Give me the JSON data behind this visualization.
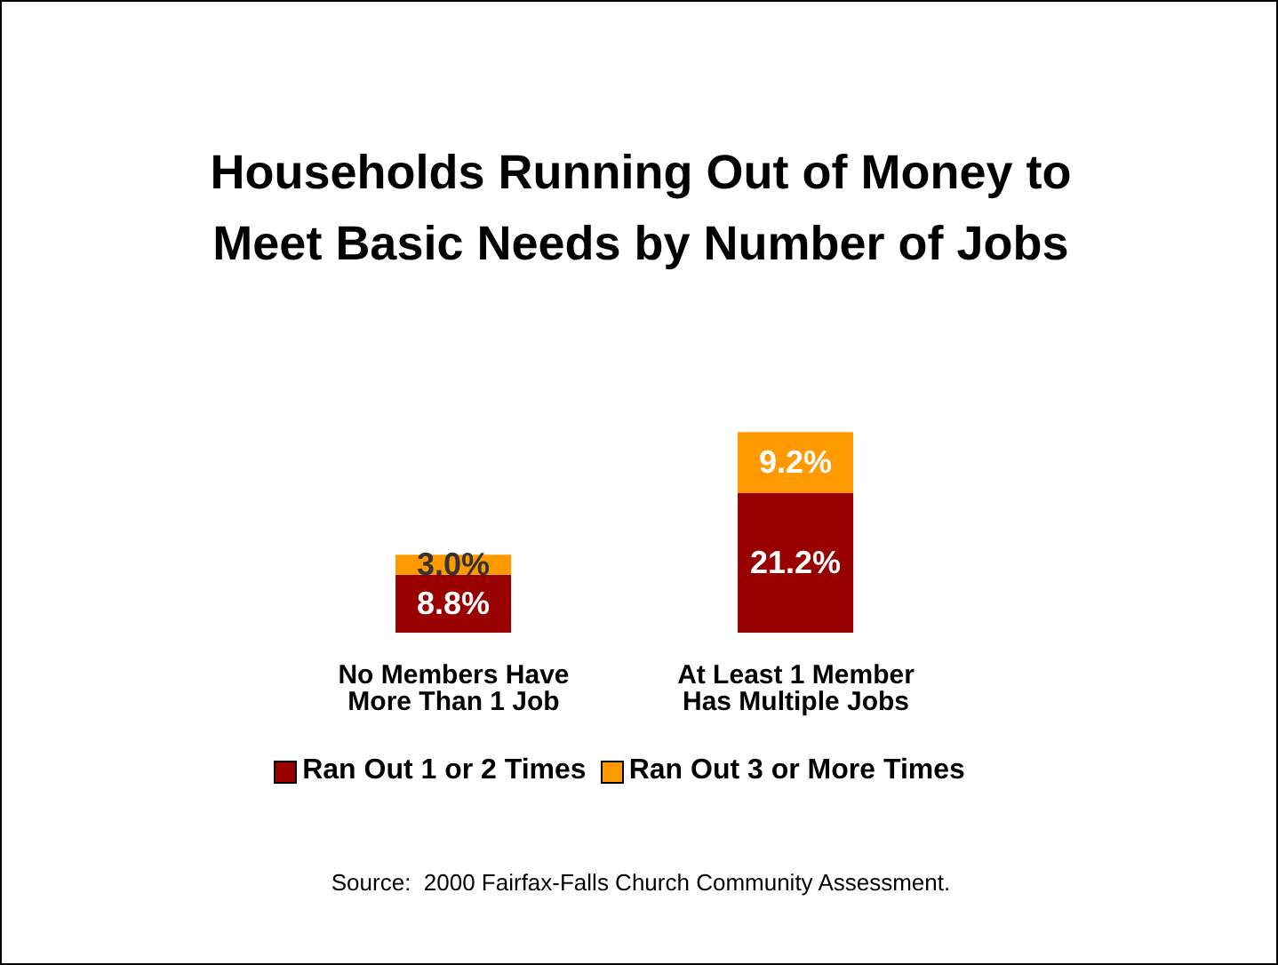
{
  "chart_data": {
    "type": "bar",
    "title": "Households Running Out of Money to Meet Basic Needs by Number of Jobs",
    "categories": [
      "No Members Have More Than 1 Job",
      "At Least 1 Member Has Multiple Jobs"
    ],
    "stacked": true,
    "legend": "bottom",
    "series": [
      {
        "name": "Ran Out 1 or 2 Times",
        "color": "#990000",
        "values": [
          8.8,
          21.2
        ],
        "value_labels": [
          "8.8%",
          "21.2%"
        ]
      },
      {
        "name": "Ran Out 3 or More Times",
        "color": "#ff9900",
        "values": [
          3.0,
          9.2
        ],
        "value_labels": [
          "3.0%",
          "9.2%"
        ]
      }
    ],
    "annotations": [
      "Source:  2000 Fairfax-Falls Church Community Assessment."
    ]
  }
}
